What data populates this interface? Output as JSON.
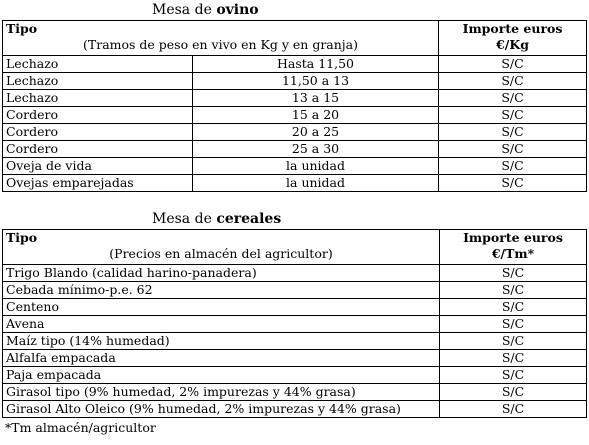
{
  "ovino": {
    "caption_prefix": "Mesa de ",
    "caption_bold": "ovino",
    "header": {
      "tipo": "Tipo",
      "subtitle": "(Tramos de peso en vivo en Kg y en granja)",
      "importe_line1": "Importe euros",
      "importe_line2": "€/Kg"
    },
    "rows": [
      {
        "tipo": "Lechazo",
        "tramo": "Hasta 11,50",
        "importe": "S/C"
      },
      {
        "tipo": "Lechazo",
        "tramo": "11,50 a 13",
        "importe": "S/C"
      },
      {
        "tipo": "Lechazo",
        "tramo": "13 a 15",
        "importe": "S/C"
      },
      {
        "tipo": "Cordero",
        "tramo": "15 a 20",
        "importe": "S/C"
      },
      {
        "tipo": "Cordero",
        "tramo": "20 a 25",
        "importe": "S/C"
      },
      {
        "tipo": "Cordero",
        "tramo": "25 a 30",
        "importe": "S/C"
      },
      {
        "tipo": "Oveja de vida",
        "tramo": "la unidad",
        "importe": "S/C"
      },
      {
        "tipo": "Ovejas emparejadas",
        "tramo": "la unidad",
        "importe": "S/C"
      }
    ]
  },
  "cereales": {
    "caption_prefix": "Mesa de ",
    "caption_bold": "cereales",
    "header": {
      "tipo": "Tipo",
      "subtitle": "(Precios en almacén del agricultor)",
      "importe_line1": "Importe euros",
      "importe_line2": "€/Tm*"
    },
    "rows": [
      {
        "tipo": "Trigo Blando (calidad harino-panadera)",
        "importe": "S/C"
      },
      {
        "tipo": "Cebada mínimo-p.e. 62",
        "importe": "S/C"
      },
      {
        "tipo": "Centeno",
        "importe": "S/C"
      },
      {
        "tipo": "Avena",
        "importe": "S/C"
      },
      {
        "tipo": "Maíz tipo (14% humedad)",
        "importe": "S/C"
      },
      {
        "tipo": "Alfalfa empacada",
        "importe": "S/C"
      },
      {
        "tipo": "Paja empacada",
        "importe": "S/C"
      },
      {
        "tipo": "Girasol tipo (9% humedad, 2% impurezas y 44% grasa)",
        "importe": "S/C"
      },
      {
        "tipo": "Girasol Alto Oleico (9% humedad, 2% impurezas y 44% grasa)",
        "importe": "S/C"
      }
    ]
  },
  "footnote": "*Tm almacén/agricultor"
}
